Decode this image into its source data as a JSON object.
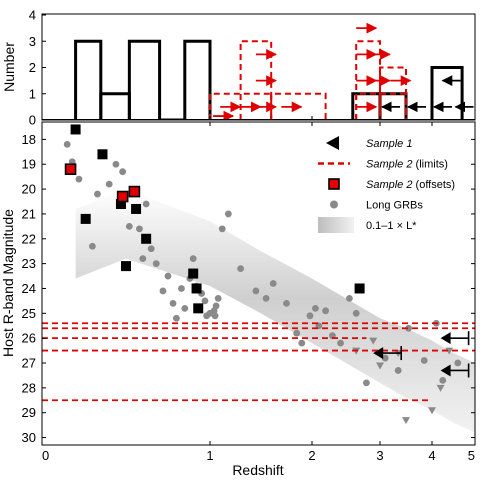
{
  "chart_data": [
    {
      "type": "histogram",
      "ylabel": "Number",
      "ylim": [
        0,
        4
      ],
      "yticks": [
        "0",
        "1",
        "2",
        "3",
        "4"
      ],
      "x_scale": "redshift-compressed (same as bottom panel)",
      "series": [
        {
          "name": "Sample 1",
          "style": "solid black step",
          "bins": [
            {
              "z0": 0.2,
              "z1": 0.35,
              "count": 3
            },
            {
              "z0": 0.35,
              "z1": 0.52,
              "count": 1
            },
            {
              "z0": 0.52,
              "z1": 0.7,
              "count": 3
            },
            {
              "z0": 0.7,
              "z1": 0.85,
              "count": 0
            },
            {
              "z0": 0.85,
              "z1": 1.0,
              "count": 3
            },
            {
              "z0": 2.6,
              "z1": 3.0,
              "count": 1
            },
            {
              "z0": 3.0,
              "z1": 3.5,
              "count": 1
            },
            {
              "z0": 4.0,
              "z1": 4.7,
              "count": 2
            }
          ],
          "limit_arrows": [
            {
              "z": 3.0,
              "level": 0.5
            },
            {
              "z": 3.5,
              "level": 0.5
            },
            {
              "z": 4.0,
              "level": 0.5
            },
            {
              "z": 4.5,
              "level": 0.5
            },
            {
              "z": 4.2,
              "level": 1.5
            }
          ]
        },
        {
          "name": "Sample 2 (limits)",
          "style": "dashed red step",
          "bins": [
            {
              "z0": 1.0,
              "z1": 1.6,
              "count": 1
            },
            {
              "z0": 1.3,
              "z1": 1.6,
              "count": 3
            },
            {
              "z0": 1.6,
              "z1": 2.2,
              "count": 1
            },
            {
              "z0": 2.65,
              "z1": 3.5,
              "count": 1
            },
            {
              "z0": 2.65,
              "z1": 3.0,
              "count": 3
            },
            {
              "z0": 3.0,
              "z1": 3.5,
              "count": 2
            }
          ],
          "limit_arrows_right": [
            {
              "z": 1.03,
              "level": 0.15
            },
            {
              "z": 1.1,
              "level": 0.5
            },
            {
              "z": 1.3,
              "level": 0.5
            },
            {
              "z": 1.45,
              "level": 0.5
            },
            {
              "z": 1.7,
              "level": 0.5
            },
            {
              "z": 1.45,
              "level": 1.5
            },
            {
              "z": 1.45,
              "level": 2.5
            },
            {
              "z": 2.65,
              "level": 0.5
            },
            {
              "z": 2.65,
              "level": 1.5
            },
            {
              "z": 2.85,
              "level": 1.5
            },
            {
              "z": 3.2,
              "level": 1.5
            },
            {
              "z": 2.65,
              "level": 2.5
            },
            {
              "z": 2.85,
              "level": 2.5
            },
            {
              "z": 2.65,
              "level": 3.5
            }
          ]
        }
      ]
    },
    {
      "type": "scatter",
      "xlabel": "Redshift",
      "ylabel": "Host R-band Magnitude",
      "xticks": [
        "0",
        "1",
        "2",
        "3",
        "4",
        "5"
      ],
      "yticks": [
        "18",
        "19",
        "20",
        "21",
        "22",
        "23",
        "24",
        "25",
        "26",
        "27",
        "28",
        "29",
        "30"
      ],
      "ylim": [
        30.3,
        17.3
      ],
      "y_inverted": true,
      "legend": {
        "placement": "top-right",
        "entries": [
          {
            "label": "Sample 1",
            "marker": "black left triangle",
            "italic": true
          },
          {
            "label_italic": "Sample 2",
            "label_rest": " (limits)",
            "marker": "red dashed line"
          },
          {
            "label_italic": "Sample 2",
            "label_rest": " (offsets)",
            "marker": "red square black edge"
          },
          {
            "label": "Long GRBs",
            "marker": "gray circle"
          },
          {
            "label": "0.1–1 × L*",
            "marker": "gray gradient band"
          }
        ]
      },
      "band_0.1_1_Lstar": {
        "upper_edge": [
          [
            0.2,
            20.8
          ],
          [
            0.5,
            20.0
          ],
          [
            1.0,
            21.3
          ],
          [
            1.5,
            22.5
          ],
          [
            2.0,
            23.6
          ],
          [
            2.5,
            24.4
          ],
          [
            3.0,
            25.2
          ],
          [
            3.5,
            25.6
          ],
          [
            4.0,
            26.1
          ],
          [
            4.5,
            26.6
          ],
          [
            5.0,
            27.0
          ]
        ],
        "lower_edge": [
          [
            0.2,
            23.6
          ],
          [
            0.5,
            22.8
          ],
          [
            1.0,
            23.9
          ],
          [
            1.5,
            25.0
          ],
          [
            2.0,
            26.2
          ],
          [
            2.5,
            27.0
          ],
          [
            3.0,
            27.8
          ],
          [
            3.5,
            28.4
          ],
          [
            4.0,
            28.9
          ],
          [
            4.5,
            29.4
          ],
          [
            5.0,
            29.8
          ]
        ]
      },
      "sample1_detections": [
        {
          "z": 0.2,
          "mag": 17.6
        },
        {
          "z": 0.26,
          "mag": 21.2
        },
        {
          "z": 0.36,
          "mag": 18.6
        },
        {
          "z": 0.47,
          "mag": 20.6
        },
        {
          "z": 0.5,
          "mag": 23.1
        },
        {
          "z": 0.56,
          "mag": 20.8
        },
        {
          "z": 0.62,
          "mag": 22.0
        },
        {
          "z": 0.9,
          "mag": 23.4
        },
        {
          "z": 0.92,
          "mag": 24.0
        },
        {
          "z": 0.93,
          "mag": 24.8
        },
        {
          "z": 2.7,
          "mag": 24.0
        }
      ],
      "sample1_limits": [
        {
          "z": 2.9,
          "mag": 26.6
        },
        {
          "z": 4.2,
          "mag": 26.0
        },
        {
          "z": 4.2,
          "mag": 27.3
        }
      ],
      "sample2_offsets": [
        {
          "z": 0.17,
          "mag": 19.2
        },
        {
          "z": 0.48,
          "mag": 20.3
        },
        {
          "z": 0.55,
          "mag": 20.1
        }
      ],
      "sample2_limit_lines": [
        {
          "mag": 25.4,
          "z_max": 5.0
        },
        {
          "mag": 25.6,
          "z_max": 5.0
        },
        {
          "mag": 26.0,
          "z_max": 2.8
        },
        {
          "mag": 26.5,
          "z_max": 5.0
        },
        {
          "mag": 28.5,
          "z_max": 4.0
        }
      ],
      "long_grbs": [
        {
          "z": 0.15,
          "mag": 18.2
        },
        {
          "z": 0.18,
          "mag": 18.9
        },
        {
          "z": 0.22,
          "mag": 19.6
        },
        {
          "z": 0.3,
          "mag": 22.3
        },
        {
          "z": 0.33,
          "mag": 20.2
        },
        {
          "z": 0.4,
          "mag": 19.8
        },
        {
          "z": 0.44,
          "mag": 19.0
        },
        {
          "z": 0.46,
          "mag": 20.6
        },
        {
          "z": 0.48,
          "mag": 19.3
        },
        {
          "z": 0.52,
          "mag": 21.5
        },
        {
          "z": 0.58,
          "mag": 21.6
        },
        {
          "z": 0.6,
          "mag": 22.8
        },
        {
          "z": 0.62,
          "mag": 20.6
        },
        {
          "z": 0.65,
          "mag": 22.4
        },
        {
          "z": 0.68,
          "mag": 23.0
        },
        {
          "z": 0.72,
          "mag": 24.1
        },
        {
          "z": 0.75,
          "mag": 23.5
        },
        {
          "z": 0.78,
          "mag": 24.6
        },
        {
          "z": 0.8,
          "mag": 25.2
        },
        {
          "z": 0.83,
          "mag": 24.0
        },
        {
          "z": 0.85,
          "mag": 24.8
        },
        {
          "z": 0.88,
          "mag": 23.6
        },
        {
          "z": 0.9,
          "mag": 22.8
        },
        {
          "z": 0.92,
          "mag": 23.9
        },
        {
          "z": 0.95,
          "mag": 24.2
        },
        {
          "z": 0.97,
          "mag": 24.5
        },
        {
          "z": 0.98,
          "mag": 25.1
        },
        {
          "z": 1.0,
          "mag": 25.0
        },
        {
          "z": 1.04,
          "mag": 24.9
        },
        {
          "z": 1.05,
          "mag": 25.1
        },
        {
          "z": 1.06,
          "mag": 24.7
        },
        {
          "z": 1.08,
          "mag": 24.4
        },
        {
          "z": 1.12,
          "mag": 21.6
        },
        {
          "z": 1.18,
          "mag": 21.0
        },
        {
          "z": 1.3,
          "mag": 23.2
        },
        {
          "z": 1.45,
          "mag": 24.1
        },
        {
          "z": 1.55,
          "mag": 24.4
        },
        {
          "z": 1.62,
          "mag": 23.8
        },
        {
          "z": 1.75,
          "mag": 24.6
        },
        {
          "z": 1.85,
          "mag": 25.8
        },
        {
          "z": 1.9,
          "mag": 26.2
        },
        {
          "z": 1.98,
          "mag": 25.1
        },
        {
          "z": 2.05,
          "mag": 24.8
        },
        {
          "z": 2.1,
          "mag": 25.5
        },
        {
          "z": 2.2,
          "mag": 24.9
        },
        {
          "z": 2.3,
          "mag": 25.9
        },
        {
          "z": 2.42,
          "mag": 26.2
        },
        {
          "z": 2.55,
          "mag": 24.4
        },
        {
          "z": 2.65,
          "mag": 25.0
        },
        {
          "z": 2.8,
          "mag": 27.8
        },
        {
          "z": 3.1,
          "mag": 26.8
        },
        {
          "z": 3.35,
          "mag": 27.3
        },
        {
          "z": 3.55,
          "mag": 25.6
        },
        {
          "z": 3.85,
          "mag": 26.9
        },
        {
          "z": 4.1,
          "mag": 25.4
        },
        {
          "z": 4.25,
          "mag": 27.7
        },
        {
          "z": 4.6,
          "mag": 27.0
        }
      ],
      "long_grb_limits": [
        {
          "z": 2.65,
          "mag": 26.5
        },
        {
          "z": 2.9,
          "mag": 26.1
        },
        {
          "z": 3.0,
          "mag": 27.1
        },
        {
          "z": 3.35,
          "mag": 26.6
        },
        {
          "z": 3.5,
          "mag": 29.3
        },
        {
          "z": 4.0,
          "mag": 28.9
        },
        {
          "z": 4.2,
          "mag": 28.0
        },
        {
          "z": 4.4,
          "mag": 26.5
        }
      ]
    }
  ]
}
